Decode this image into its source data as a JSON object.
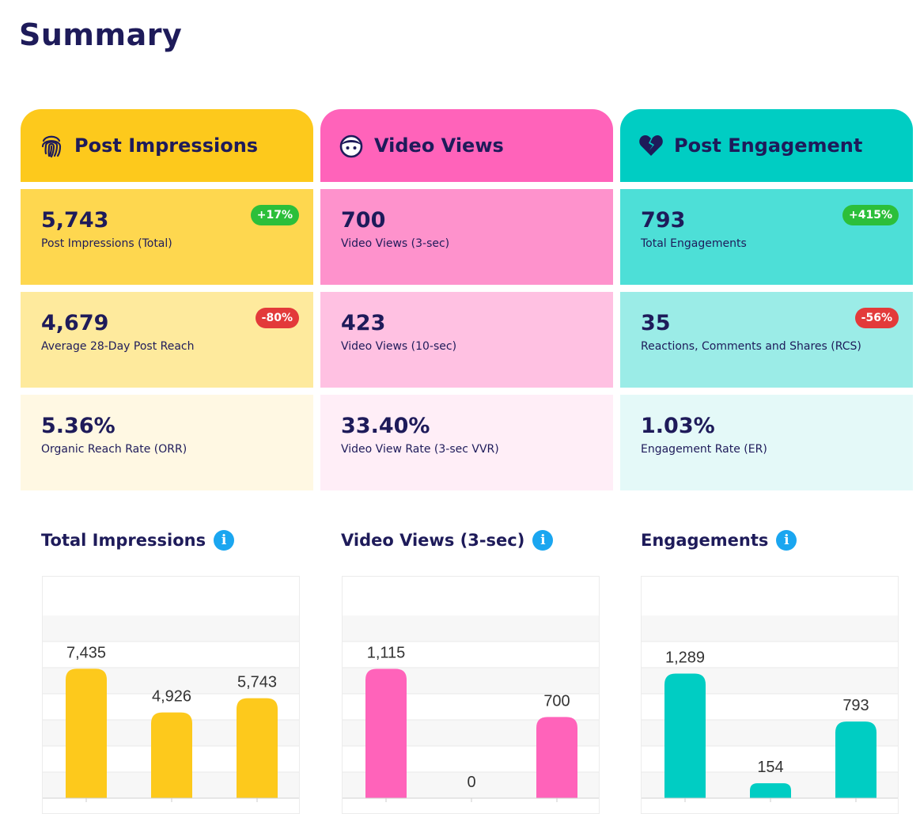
{
  "page": {
    "title": "Summary"
  },
  "columns": [
    {
      "header": "Post Impressions",
      "icon": "fingerprint-icon",
      "color": "#fdc91c",
      "metrics": [
        {
          "value": "5,743",
          "label": "Post Impressions (Total)",
          "badge": "+17%",
          "trend": "up"
        },
        {
          "value": "4,679",
          "label": "Average 28-Day Post Reach",
          "badge": "-80%",
          "trend": "down"
        },
        {
          "value": "5.36%",
          "label": "Organic Reach Rate (ORR)",
          "badge": "",
          "trend": ""
        }
      ]
    },
    {
      "header": "Video Views",
      "icon": "face-icon",
      "color": "#ff63ba",
      "metrics": [
        {
          "value": "700",
          "label": "Video Views (3-sec)",
          "badge": "",
          "trend": ""
        },
        {
          "value": "423",
          "label": "Video Views (10-sec)",
          "badge": "",
          "trend": ""
        },
        {
          "value": "33.40%",
          "label": "Video View Rate (3-sec VVR)",
          "badge": "",
          "trend": ""
        }
      ]
    },
    {
      "header": "Post Engagement",
      "icon": "broken-heart-icon",
      "color": "#00cdc3",
      "metrics": [
        {
          "value": "793",
          "label": "Total Engagements",
          "badge": "+415%",
          "trend": "up"
        },
        {
          "value": "35",
          "label": "Reactions, Comments and Shares (RCS)",
          "badge": "-56%",
          "trend": "down"
        },
        {
          "value": "1.03%",
          "label": "Engagement Rate (ER)",
          "badge": "",
          "trend": ""
        }
      ]
    }
  ],
  "chart_data": [
    {
      "type": "bar",
      "title": "Total Impressions",
      "categories": [
        "",
        "",
        ""
      ],
      "values": [
        7435,
        4926,
        5743
      ],
      "value_labels": [
        "7,435",
        "4,926",
        "5,743"
      ],
      "color": "#fdc91c",
      "ylim": [
        0,
        10000
      ],
      "grid": true
    },
    {
      "type": "bar",
      "title": "Video Views (3-sec)",
      "categories": [
        "",
        "",
        ""
      ],
      "values": [
        1115,
        0,
        700
      ],
      "value_labels": [
        "1,115",
        "0",
        "700"
      ],
      "color": "#ff63ba",
      "ylim": [
        0,
        1500
      ],
      "grid": true
    },
    {
      "type": "bar",
      "title": "Engagements",
      "categories": [
        "",
        "",
        ""
      ],
      "values": [
        1289,
        154,
        793
      ],
      "value_labels": [
        "1,289",
        "154",
        "793"
      ],
      "color": "#00cdc3",
      "ylim": [
        0,
        1800
      ],
      "grid": true
    }
  ]
}
